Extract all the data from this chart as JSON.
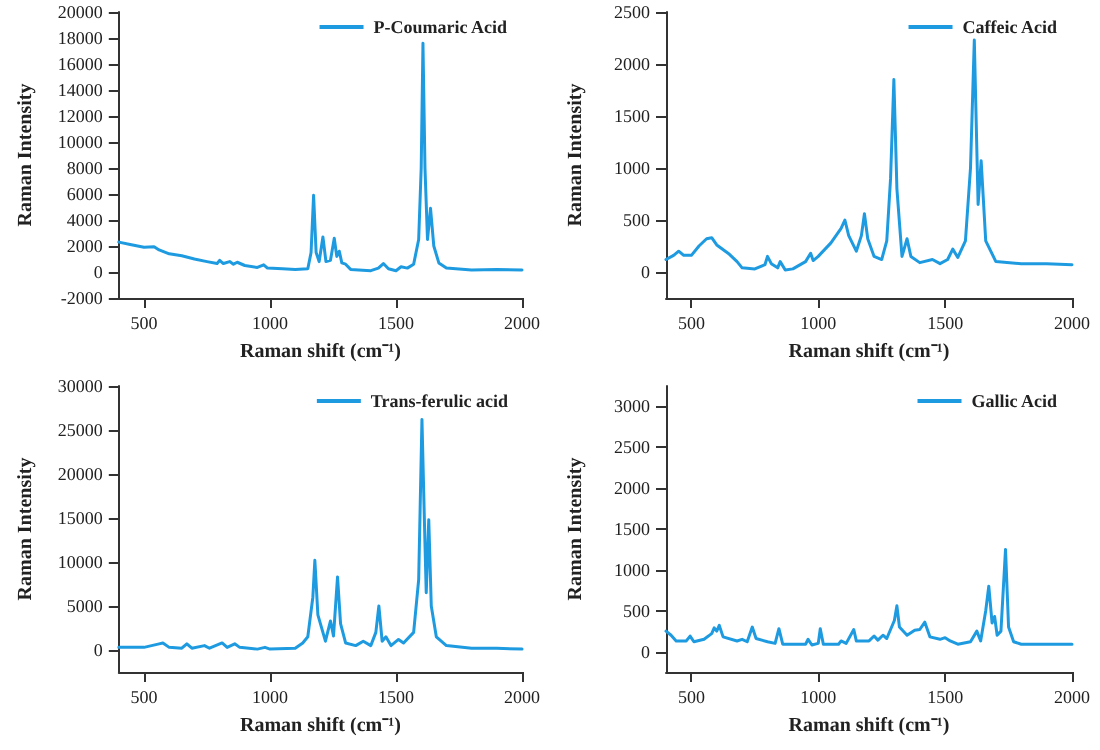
{
  "chart_data": [
    {
      "type": "line",
      "xlabel": "Raman shift (cm⁻¹)",
      "ylabel": "Raman Intensity",
      "xlim": [
        400,
        2000
      ],
      "xticks": [
        500,
        1000,
        1500,
        2000
      ],
      "ylim": [
        -2000,
        20000
      ],
      "yticks": [
        -2000,
        0,
        2000,
        4000,
        6000,
        8000,
        10000,
        12000,
        14000,
        16000,
        18000,
        20000
      ],
      "grid": false,
      "legend": "top right",
      "marker": "none",
      "line_style": "solid",
      "series": [
        {
          "name": "P-Coumaric Acid",
          "color": "#1e9be0",
          "x": [
            400,
            450,
            500,
            540,
            560,
            600,
            650,
            700,
            750,
            790,
            800,
            815,
            840,
            855,
            870,
            900,
            950,
            975,
            990,
            1050,
            1100,
            1150,
            1163,
            1173,
            1183,
            1195,
            1210,
            1222,
            1240,
            1255,
            1265,
            1275,
            1285,
            1300,
            1320,
            1400,
            1430,
            1450,
            1470,
            1500,
            1520,
            1545,
            1570,
            1590,
            1600,
            1607,
            1615,
            1625,
            1637,
            1650,
            1670,
            1700,
            1800,
            1900,
            2000
          ],
          "values": [
            2300,
            2100,
            1900,
            1950,
            1700,
            1400,
            1250,
            1000,
            800,
            650,
            900,
            650,
            800,
            600,
            750,
            500,
            350,
            550,
            300,
            250,
            200,
            250,
            1500,
            5900,
            1500,
            800,
            2700,
            800,
            900,
            2600,
            1200,
            1600,
            700,
            600,
            200,
            100,
            300,
            650,
            250,
            100,
            400,
            300,
            600,
            2500,
            8000,
            17600,
            8000,
            2500,
            4900,
            2000,
            700,
            300,
            150,
            200,
            150
          ]
        }
      ]
    },
    {
      "type": "line",
      "xlabel": "Raman shift (cm⁻¹)",
      "ylabel": "Raman Intensity",
      "xlim": [
        400,
        2000
      ],
      "xticks": [
        500,
        1000,
        1500,
        2000
      ],
      "ylim": [
        -250,
        2500
      ],
      "yticks": [
        0,
        500,
        1000,
        1500,
        2000,
        2500
      ],
      "grid": false,
      "legend": "top right",
      "marker": "none",
      "line_style": "solid",
      "series": [
        {
          "name": "Caffeic Acid",
          "color": "#1e9be0",
          "x": [
            400,
            430,
            450,
            470,
            500,
            530,
            560,
            580,
            600,
            650,
            680,
            700,
            750,
            790,
            800,
            815,
            840,
            850,
            870,
            900,
            950,
            970,
            980,
            1000,
            1050,
            1090,
            1105,
            1120,
            1150,
            1170,
            1182,
            1195,
            1220,
            1250,
            1270,
            1285,
            1298,
            1310,
            1330,
            1350,
            1365,
            1400,
            1450,
            1480,
            1510,
            1530,
            1550,
            1580,
            1600,
            1615,
            1630,
            1642,
            1660,
            1700,
            1800,
            1900,
            2000
          ],
          "values": [
            120,
            160,
            200,
            160,
            160,
            250,
            320,
            330,
            260,
            170,
            100,
            40,
            30,
            70,
            150,
            80,
            40,
            100,
            20,
            30,
            100,
            180,
            110,
            150,
            280,
            420,
            500,
            350,
            200,
            350,
            560,
            320,
            150,
            120,
            300,
            900,
            1850,
            800,
            150,
            320,
            150,
            90,
            120,
            80,
            120,
            220,
            140,
            300,
            1000,
            2230,
            650,
            1070,
            300,
            100,
            80,
            80,
            70
          ]
        }
      ]
    },
    {
      "type": "line",
      "xlabel": "Raman shift (cm⁻¹)",
      "ylabel": "Raman Intensity",
      "xlim": [
        400,
        2000
      ],
      "xticks": [
        500,
        1000,
        1500,
        2000
      ],
      "ylim": [
        -2500,
        30000
      ],
      "yticks": [
        0,
        5000,
        10000,
        15000,
        20000,
        25000,
        30000
      ],
      "grid": false,
      "legend": "top right",
      "marker": "none",
      "line_style": "solid",
      "series": [
        {
          "name": "Trans-ferulic acid",
          "color": "#1e9be0",
          "x": [
            400,
            500,
            560,
            575,
            600,
            650,
            670,
            690,
            740,
            760,
            810,
            830,
            860,
            880,
            950,
            980,
            1000,
            1100,
            1130,
            1150,
            1170,
            1178,
            1190,
            1220,
            1240,
            1252,
            1268,
            1280,
            1300,
            1340,
            1370,
            1400,
            1420,
            1432,
            1445,
            1460,
            1480,
            1510,
            1530,
            1570,
            1590,
            1603,
            1615,
            1620,
            1630,
            1640,
            1660,
            1700,
            1800,
            1900,
            2000
          ],
          "values": [
            300,
            300,
            700,
            800,
            300,
            200,
            700,
            200,
            500,
            200,
            800,
            300,
            700,
            300,
            100,
            300,
            100,
            200,
            800,
            1500,
            6000,
            10200,
            4000,
            1000,
            3300,
            1600,
            8300,
            3000,
            800,
            500,
            1000,
            500,
            2000,
            5000,
            1000,
            1500,
            500,
            1200,
            800,
            2000,
            8000,
            26200,
            12000,
            6500,
            14800,
            5000,
            1500,
            500,
            200,
            200,
            100
          ]
        }
      ]
    },
    {
      "type": "line",
      "xlabel": "Raman shift (cm⁻¹)",
      "ylabel": "Raman Intensity",
      "xlim": [
        400,
        2000
      ],
      "xticks": [
        500,
        1000,
        1500,
        2000
      ],
      "ylim": [
        -250,
        3250
      ],
      "yticks": [
        0,
        500,
        1000,
        1500,
        2000,
        2500,
        3000
      ],
      "grid": false,
      "legend": "top right",
      "marker": "none",
      "line_style": "solid",
      "series": [
        {
          "name": "Gallic Acid",
          "color": "#1e9be0",
          "x": [
            400,
            420,
            440,
            480,
            495,
            510,
            550,
            580,
            590,
            600,
            610,
            625,
            680,
            700,
            720,
            740,
            755,
            800,
            830,
            845,
            860,
            950,
            960,
            975,
            1000,
            1008,
            1020,
            1080,
            1090,
            1110,
            1140,
            1150,
            1200,
            1220,
            1235,
            1255,
            1270,
            1300,
            1310,
            1320,
            1350,
            1380,
            1400,
            1420,
            1440,
            1480,
            1500,
            1520,
            1550,
            1600,
            1625,
            1640,
            1660,
            1672,
            1685,
            1695,
            1705,
            1720,
            1738,
            1750,
            1770,
            1800,
            2000
          ],
          "values": [
            250,
            200,
            130,
            130,
            190,
            120,
            150,
            220,
            290,
            250,
            320,
            180,
            130,
            150,
            120,
            300,
            160,
            120,
            100,
            280,
            90,
            90,
            150,
            80,
            100,
            280,
            90,
            90,
            130,
            100,
            270,
            130,
            130,
            190,
            140,
            200,
            160,
            380,
            560,
            300,
            200,
            260,
            270,
            360,
            180,
            150,
            170,
            130,
            90,
            120,
            250,
            130,
            500,
            800,
            350,
            430,
            200,
            250,
            1250,
            300,
            120,
            90,
            90
          ]
        }
      ]
    }
  ]
}
